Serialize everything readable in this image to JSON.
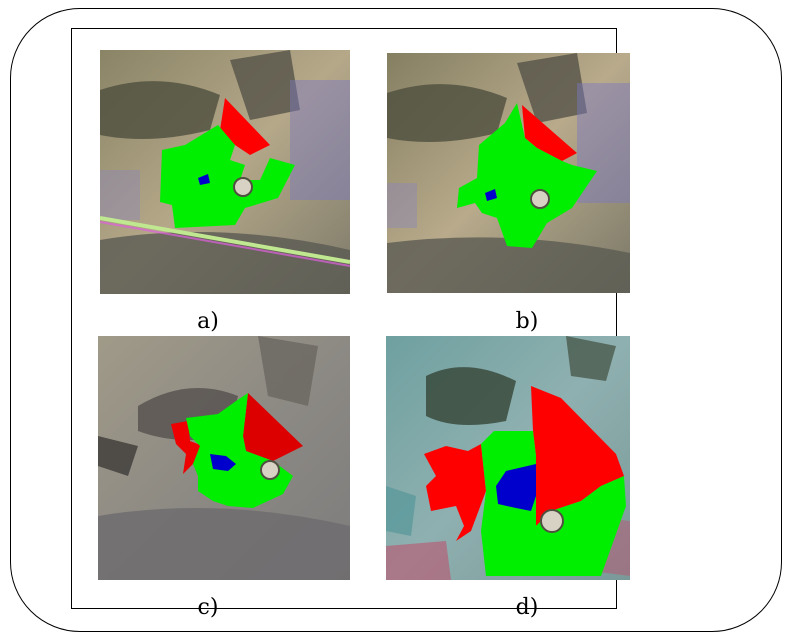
{
  "figure": {
    "panels": [
      {
        "caption": "a)"
      },
      {
        "caption": "b)"
      },
      {
        "caption": "c)"
      },
      {
        "caption": "d)"
      }
    ]
  },
  "colors": {
    "class_red": "#ff0000",
    "class_green": "#00ee00",
    "class_blue": "#0000cc"
  },
  "icons": [
    "terrain-background",
    "crater-landmark"
  ]
}
